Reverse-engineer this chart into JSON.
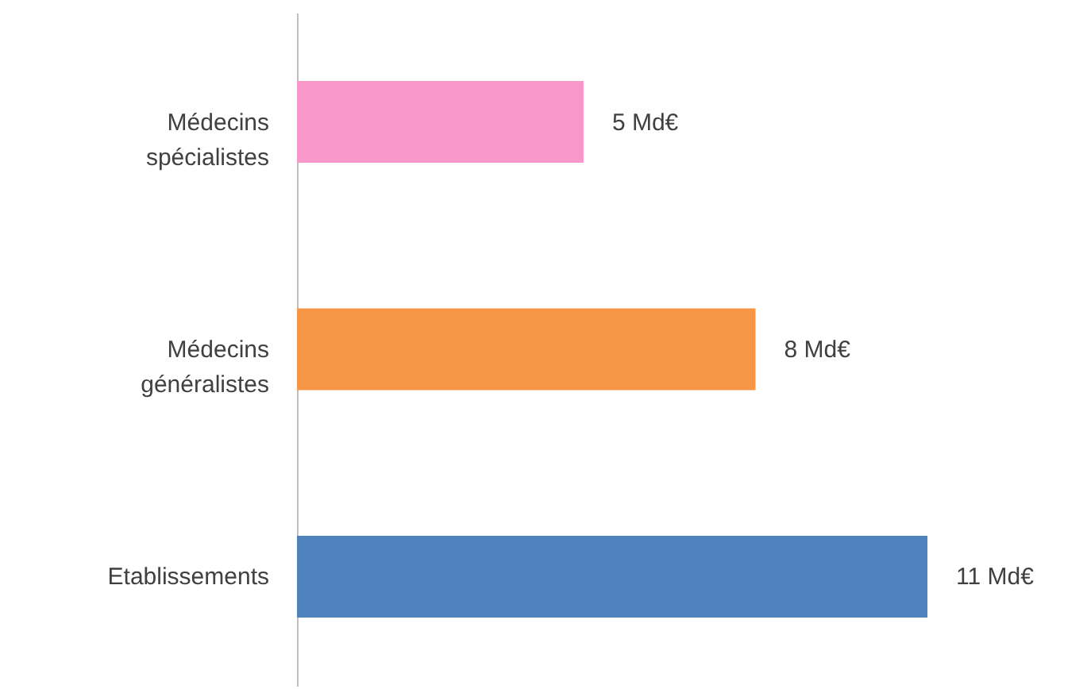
{
  "chart_data": {
    "type": "bar",
    "orientation": "horizontal",
    "categories": [
      "Médecins spécialistes",
      "Médecins généralistes",
      "Etablissements"
    ],
    "values": [
      5,
      8,
      11
    ],
    "colors": [
      "#f898c9",
      "#f79646",
      "#4f81bd"
    ],
    "value_labels": [
      "5  Md€",
      "8  Md€",
      "11  Md€"
    ]
  }
}
